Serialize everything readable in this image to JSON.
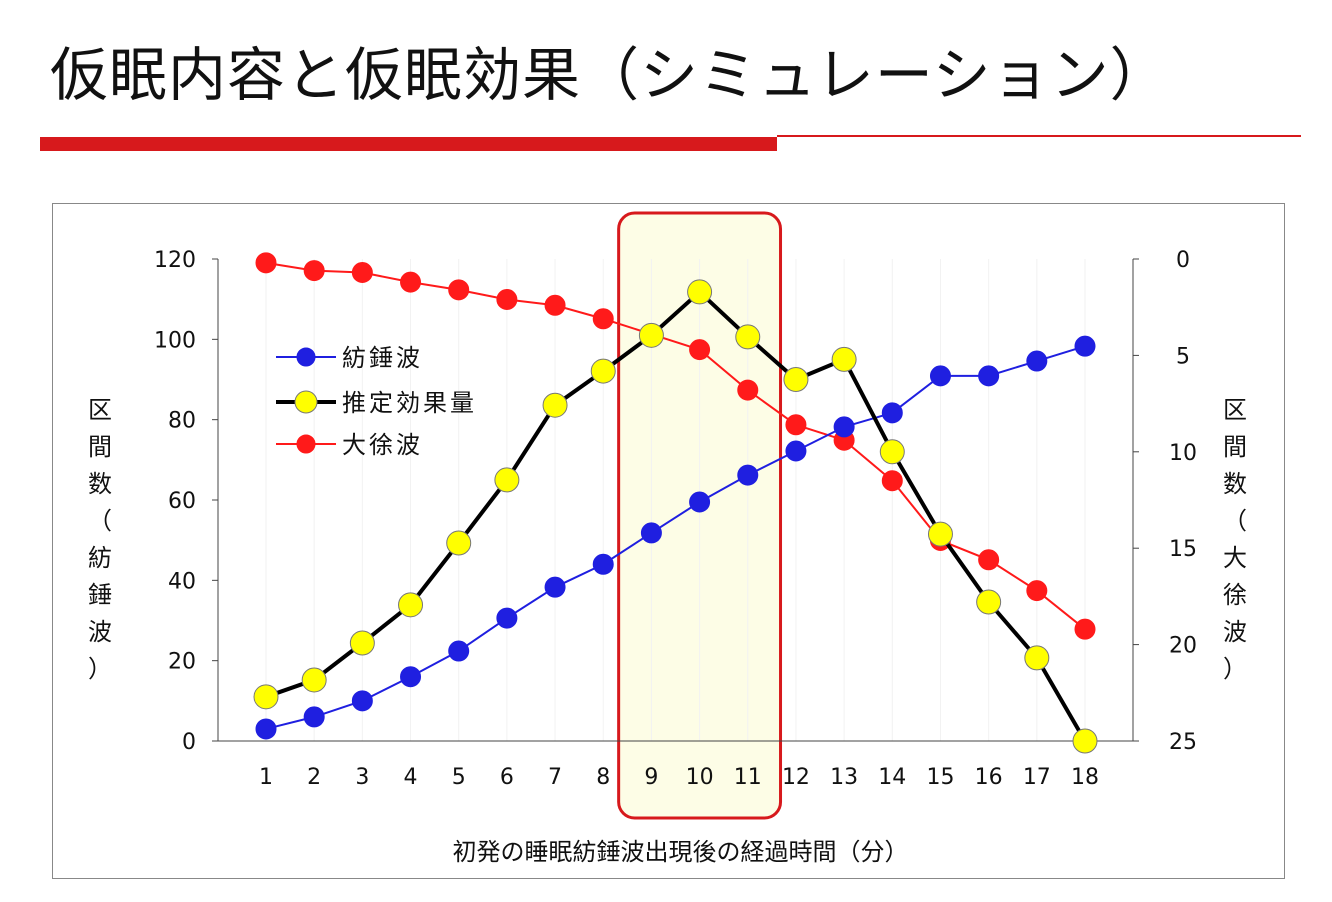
{
  "slide": {
    "title": "仮眠内容と仮眠効果（シミュレーション）",
    "accent_color": "#d7191c"
  },
  "chart_data": {
    "type": "line",
    "x": [
      1,
      2,
      3,
      4,
      5,
      6,
      7,
      8,
      9,
      10,
      11,
      12,
      13,
      14,
      15,
      16,
      17,
      18
    ],
    "xlabel": "初発の睡眠紡錘波出現後の経過時間（分）",
    "ylabel_left": "区間数（紡錘波）",
    "ylabel_right": "区間数（大徐波）",
    "ylim_left": [
      0,
      120
    ],
    "yticks_left": [
      0,
      20,
      40,
      60,
      80,
      100,
      120
    ],
    "ylim_right": [
      25,
      0
    ],
    "right_axis_inverted": true,
    "yticks_right": [
      0,
      5,
      10,
      15,
      20,
      25
    ],
    "grid": false,
    "legend_position": "upper-left",
    "highlight_range": [
      9,
      11
    ],
    "highlight_color": "#fdfde6",
    "series": [
      {
        "name": "紡錘波",
        "axis": "left",
        "color": "#1f1fe0",
        "marker_color": "#1f1fe0",
        "values": [
          3,
          6,
          10,
          16,
          22.4,
          30.6,
          38.3,
          44,
          51.8,
          59.5,
          66.2,
          72.2,
          78.2,
          81.7,
          90.9,
          90.9,
          94.6,
          98.3
        ]
      },
      {
        "name": "推定効果量",
        "axis": "left",
        "color": "#000000",
        "marker_color": "#ffff00",
        "values": [
          11,
          15.2,
          24.4,
          33.9,
          49.3,
          65,
          83.6,
          92.1,
          101,
          111.8,
          100.6,
          90,
          95,
          72,
          51.5,
          34.6,
          20.7,
          0
        ]
      },
      {
        "name": "大徐波",
        "axis": "right",
        "color": "#ff1a1a",
        "marker_color": "#ff1a1a",
        "values": [
          0.2,
          0.6,
          0.7,
          1.2,
          1.6,
          2.1,
          2.4,
          3.1,
          3.9,
          4.7,
          6.8,
          8.6,
          9.4,
          11.5,
          14.6,
          15.6,
          17.2,
          19.2
        ]
      }
    ]
  }
}
